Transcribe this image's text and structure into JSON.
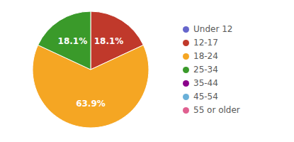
{
  "chart_data": {
    "type": "pie",
    "categories": [
      "Under 12",
      "12-17",
      "18-24",
      "25-34",
      "35-44",
      "45-54",
      "55 or older"
    ],
    "values": [
      0,
      18.1,
      63.9,
      18.1,
      0,
      0,
      0
    ],
    "colors": [
      "#6666cc",
      "#c0392b",
      "#f5a623",
      "#3a9a2a",
      "#8b008b",
      "#6ab0d8",
      "#e06090"
    ],
    "data_labels": true,
    "value_labels": [
      null,
      "18.1%",
      "63.9%",
      "18.1%",
      null,
      null,
      null
    ],
    "legend": "right"
  }
}
